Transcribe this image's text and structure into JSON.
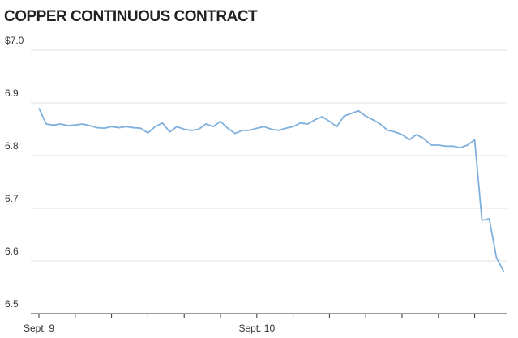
{
  "chart_data": {
    "type": "line",
    "title": "COPPER CONTINUOUS CONTRACT",
    "categories": [
      "Sept. 9",
      null,
      null,
      null,
      null,
      null,
      null,
      null,
      null,
      null,
      null,
      null,
      null,
      null,
      null,
      null,
      null,
      null,
      null,
      null,
      null,
      null,
      null,
      null,
      null,
      null,
      null,
      null,
      null,
      null,
      "Sept. 10",
      null,
      null,
      null,
      null,
      null,
      null,
      null,
      null,
      null,
      null,
      null,
      null,
      null,
      null,
      null,
      null,
      null,
      null,
      null,
      null,
      null,
      null,
      null,
      null,
      null,
      null,
      null,
      null,
      null,
      null,
      null,
      null,
      null,
      null
    ],
    "series": [
      {
        "color": "#7fb0dc",
        "values": [
          6.89,
          6.86,
          6.858,
          6.86,
          6.857,
          6.858,
          6.86,
          6.857,
          6.853,
          6.852,
          6.855,
          6.853,
          6.855,
          6.853,
          6.852,
          6.843,
          6.855,
          6.862,
          6.845,
          6.855,
          6.85,
          6.848,
          6.85,
          6.86,
          6.855,
          6.865,
          6.852,
          6.842,
          6.848,
          6.848,
          6.852,
          6.855,
          6.85,
          6.848,
          6.852,
          6.855,
          6.862,
          6.86,
          6.868,
          6.874,
          6.865,
          6.855,
          6.875,
          6.88,
          6.885,
          6.875,
          6.868,
          6.86,
          6.848,
          6.845,
          6.84,
          6.83,
          6.84,
          6.832,
          6.82,
          6.82,
          6.818,
          6.818,
          6.815,
          6.82,
          6.83,
          6.677,
          6.68,
          6.606,
          6.58
        ]
      }
    ],
    "ylim": [
      6.5,
      7.0
    ],
    "yticks": [
      6.5,
      6.6,
      6.7,
      6.8,
      6.9,
      {
        "value": 7.0,
        "label": "$7.0"
      }
    ],
    "grid": true
  }
}
